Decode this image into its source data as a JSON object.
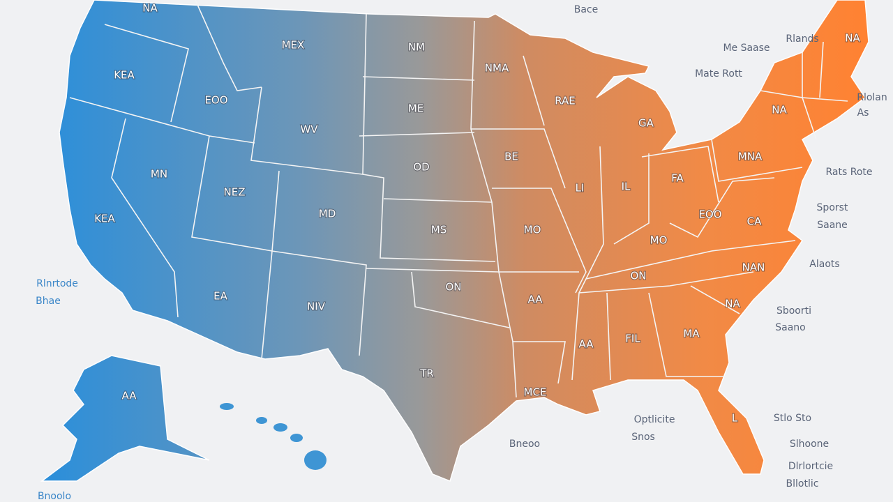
{
  "states": [
    {
      "label": "NA"
    },
    {
      "label": "MEX"
    },
    {
      "label": "NM"
    },
    {
      "label": "NMA"
    },
    {
      "label": "NA"
    },
    {
      "label": "KEA"
    },
    {
      "label": "EOO"
    },
    {
      "label": "ME"
    },
    {
      "label": "RAE"
    },
    {
      "label": "NA"
    },
    {
      "label": "WV"
    },
    {
      "label": "GA"
    },
    {
      "label": "BE"
    },
    {
      "label": "MN"
    },
    {
      "label": "OD"
    },
    {
      "label": "MNA"
    },
    {
      "label": "NEZ"
    },
    {
      "label": "LI"
    },
    {
      "label": "IL"
    },
    {
      "label": "FA"
    },
    {
      "label": "MD"
    },
    {
      "label": "EOO"
    },
    {
      "label": "CA"
    },
    {
      "label": "KEA"
    },
    {
      "label": "MS"
    },
    {
      "label": "MO"
    },
    {
      "label": "MO"
    },
    {
      "label": "ON"
    },
    {
      "label": "ON"
    },
    {
      "label": "NAN"
    },
    {
      "label": "EA"
    },
    {
      "label": "NIV"
    },
    {
      "label": "AA"
    },
    {
      "label": "NA"
    },
    {
      "label": "AA"
    },
    {
      "label": "FIL"
    },
    {
      "label": "MA"
    },
    {
      "label": "TR"
    },
    {
      "label": "MCE"
    },
    {
      "label": "AA"
    },
    {
      "label": "L"
    }
  ],
  "annotations": [
    {
      "label": "Bace"
    },
    {
      "label": "Rlands"
    },
    {
      "label": "Me Saase"
    },
    {
      "label": "Mate Rott"
    },
    {
      "label": "Rlolan"
    },
    {
      "label": "As"
    },
    {
      "label": "Rats Rote"
    },
    {
      "label": "Sporst"
    },
    {
      "label": "Saane"
    },
    {
      "label": "Alaots"
    },
    {
      "label": "Sboorti"
    },
    {
      "label": "Saano"
    },
    {
      "label": "Rlnrtode"
    },
    {
      "label": "Bhae"
    },
    {
      "label": "Optlicite"
    },
    {
      "label": "Snos"
    },
    {
      "label": "Bneoo"
    },
    {
      "label": "Stlo Sto"
    },
    {
      "label": "Slhoone"
    },
    {
      "label": "Dlrlortcie"
    },
    {
      "label": "Bllotlic"
    },
    {
      "label": "Bnoolo"
    }
  ]
}
